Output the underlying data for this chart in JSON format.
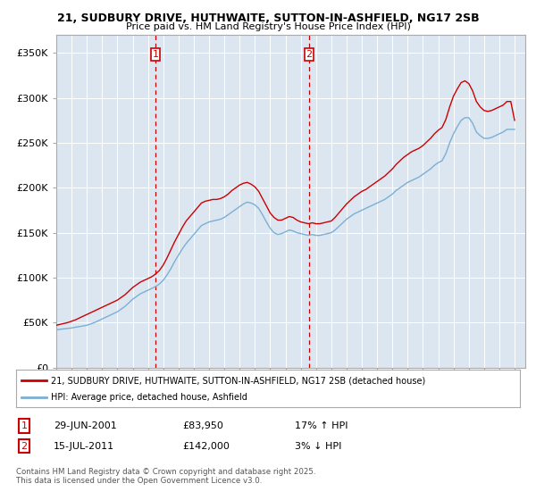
{
  "title_line1": "21, SUDBURY DRIVE, HUTHWAITE, SUTTON-IN-ASHFIELD, NG17 2SB",
  "title_line2": "Price paid vs. HM Land Registry's House Price Index (HPI)",
  "ylabel_ticks": [
    "£0",
    "£50K",
    "£100K",
    "£150K",
    "£200K",
    "£250K",
    "£300K",
    "£350K"
  ],
  "ytick_values": [
    0,
    50000,
    100000,
    150000,
    200000,
    250000,
    300000,
    350000
  ],
  "ylim": [
    0,
    370000
  ],
  "xlim_start": 1995.0,
  "xlim_end": 2025.7,
  "hpi_color": "#7bafd4",
  "price_color": "#cc0000",
  "vline_color": "#cc0000",
  "bg_color": "#dce6f1",
  "marker1_year": 2001.49,
  "marker2_year": 2011.54,
  "legend_label1": "21, SUDBURY DRIVE, HUTHWAITE, SUTTON-IN-ASHFIELD, NG17 2SB (detached house)",
  "legend_label2": "HPI: Average price, detached house, Ashfield",
  "table_row1": [
    "1",
    "29-JUN-2001",
    "£83,950",
    "17% ↑ HPI"
  ],
  "table_row2": [
    "2",
    "15-JUL-2011",
    "£142,000",
    "3% ↓ HPI"
  ],
  "footer": "Contains HM Land Registry data © Crown copyright and database right 2025.\nThis data is licensed under the Open Government Licence v3.0.",
  "hpi_data_years": [
    1995.0,
    1995.25,
    1995.5,
    1995.75,
    1996.0,
    1996.25,
    1996.5,
    1996.75,
    1997.0,
    1997.25,
    1997.5,
    1997.75,
    1998.0,
    1998.25,
    1998.5,
    1998.75,
    1999.0,
    1999.25,
    1999.5,
    1999.75,
    2000.0,
    2000.25,
    2000.5,
    2000.75,
    2001.0,
    2001.25,
    2001.5,
    2001.75,
    2002.0,
    2002.25,
    2002.5,
    2002.75,
    2003.0,
    2003.25,
    2003.5,
    2003.75,
    2004.0,
    2004.25,
    2004.5,
    2004.75,
    2005.0,
    2005.25,
    2005.5,
    2005.75,
    2006.0,
    2006.25,
    2006.5,
    2006.75,
    2007.0,
    2007.25,
    2007.5,
    2007.75,
    2008.0,
    2008.25,
    2008.5,
    2008.75,
    2009.0,
    2009.25,
    2009.5,
    2009.75,
    2010.0,
    2010.25,
    2010.5,
    2010.75,
    2011.0,
    2011.25,
    2011.5,
    2011.75,
    2012.0,
    2012.25,
    2012.5,
    2012.75,
    2013.0,
    2013.25,
    2013.5,
    2013.75,
    2014.0,
    2014.25,
    2014.5,
    2014.75,
    2015.0,
    2015.25,
    2015.5,
    2015.75,
    2016.0,
    2016.25,
    2016.5,
    2016.75,
    2017.0,
    2017.25,
    2017.5,
    2017.75,
    2018.0,
    2018.25,
    2018.5,
    2018.75,
    2019.0,
    2019.25,
    2019.5,
    2019.75,
    2020.0,
    2020.25,
    2020.5,
    2020.75,
    2021.0,
    2021.25,
    2021.5,
    2021.75,
    2022.0,
    2022.25,
    2022.5,
    2022.75,
    2023.0,
    2023.25,
    2023.5,
    2023.75,
    2024.0,
    2024.25,
    2024.5,
    2024.75,
    2025.0
  ],
  "hpi_data_values": [
    42000,
    42500,
    43000,
    43500,
    44000,
    44800,
    45500,
    46200,
    47000,
    48500,
    50000,
    52000,
    54000,
    56000,
    58000,
    60000,
    62000,
    65000,
    68000,
    72000,
    76000,
    79000,
    82000,
    84000,
    86000,
    88000,
    90000,
    93000,
    97000,
    103000,
    110000,
    118000,
    125000,
    132000,
    138000,
    143000,
    148000,
    153000,
    158000,
    160000,
    162000,
    163000,
    164000,
    165000,
    167000,
    170000,
    173000,
    176000,
    179000,
    182000,
    184000,
    183000,
    181000,
    177000,
    170000,
    162000,
    155000,
    150000,
    148000,
    149000,
    151000,
    153000,
    152000,
    150000,
    149000,
    148000,
    147000,
    148000,
    147000,
    147000,
    148000,
    149000,
    150000,
    153000,
    157000,
    161000,
    165000,
    168000,
    171000,
    173000,
    175000,
    177000,
    179000,
    181000,
    183000,
    185000,
    187000,
    190000,
    193000,
    197000,
    200000,
    203000,
    206000,
    208000,
    210000,
    212000,
    215000,
    218000,
    221000,
    225000,
    228000,
    230000,
    238000,
    250000,
    260000,
    268000,
    275000,
    278000,
    278000,
    272000,
    262000,
    258000,
    255000,
    255000,
    256000,
    258000,
    260000,
    262000,
    265000,
    265000,
    265000
  ],
  "price_data_years": [
    1995.0,
    1995.25,
    1995.5,
    1995.75,
    1996.0,
    1996.25,
    1996.5,
    1996.75,
    1997.0,
    1997.25,
    1997.5,
    1997.75,
    1998.0,
    1998.25,
    1998.5,
    1998.75,
    1999.0,
    1999.25,
    1999.5,
    1999.75,
    2000.0,
    2000.25,
    2000.5,
    2000.75,
    2001.0,
    2001.25,
    2001.5,
    2001.75,
    2002.0,
    2002.25,
    2002.5,
    2002.75,
    2003.0,
    2003.25,
    2003.5,
    2003.75,
    2004.0,
    2004.25,
    2004.5,
    2004.75,
    2005.0,
    2005.25,
    2005.5,
    2005.75,
    2006.0,
    2006.25,
    2006.5,
    2006.75,
    2007.0,
    2007.25,
    2007.5,
    2007.75,
    2008.0,
    2008.25,
    2008.5,
    2008.75,
    2009.0,
    2009.25,
    2009.5,
    2009.75,
    2010.0,
    2010.25,
    2010.5,
    2010.75,
    2011.0,
    2011.25,
    2011.5,
    2011.75,
    2012.0,
    2012.25,
    2012.5,
    2012.75,
    2013.0,
    2013.25,
    2013.5,
    2013.75,
    2014.0,
    2014.25,
    2014.5,
    2014.75,
    2015.0,
    2015.25,
    2015.5,
    2015.75,
    2016.0,
    2016.25,
    2016.5,
    2016.75,
    2017.0,
    2017.25,
    2017.5,
    2017.75,
    2018.0,
    2018.25,
    2018.5,
    2018.75,
    2019.0,
    2019.25,
    2019.5,
    2019.75,
    2020.0,
    2020.25,
    2020.5,
    2020.75,
    2021.0,
    2021.25,
    2021.5,
    2021.75,
    2022.0,
    2022.25,
    2022.5,
    2022.75,
    2023.0,
    2023.25,
    2023.5,
    2023.75,
    2024.0,
    2024.25,
    2024.5,
    2024.75,
    2025.0
  ],
  "price_data_values": [
    47000,
    48000,
    49000,
    50000,
    51500,
    53000,
    55000,
    57000,
    59000,
    61000,
    63000,
    65000,
    67000,
    69000,
    71000,
    73000,
    75000,
    78000,
    81000,
    85000,
    89000,
    92000,
    95000,
    97000,
    99000,
    101000,
    104000,
    108000,
    114000,
    122000,
    131000,
    140000,
    148000,
    156000,
    163000,
    168000,
    173000,
    178000,
    183000,
    185000,
    186000,
    187000,
    187000,
    188000,
    190000,
    193000,
    197000,
    200000,
    203000,
    205000,
    206000,
    204000,
    201000,
    196000,
    188000,
    180000,
    172000,
    167000,
    164000,
    164000,
    166000,
    168000,
    167000,
    164000,
    162000,
    161000,
    160000,
    161000,
    160000,
    160000,
    161000,
    162000,
    163000,
    167000,
    172000,
    177000,
    182000,
    186000,
    190000,
    193000,
    196000,
    198000,
    201000,
    204000,
    207000,
    210000,
    213000,
    217000,
    221000,
    226000,
    230000,
    234000,
    237000,
    240000,
    242000,
    244000,
    247000,
    251000,
    255000,
    260000,
    264000,
    267000,
    276000,
    290000,
    302000,
    310000,
    317000,
    319000,
    316000,
    308000,
    296000,
    290000,
    286000,
    285000,
    286000,
    288000,
    290000,
    292000,
    296000,
    296000,
    275000
  ]
}
